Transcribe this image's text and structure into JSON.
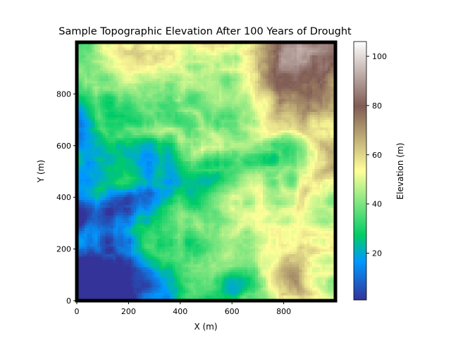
{
  "chart_data": {
    "type": "heatmap",
    "title": "Sample Topographic Elevation After 100 Years of Drought",
    "xlabel": "X (m)",
    "ylabel": "Y (m)",
    "xlim": [
      0,
      1000
    ],
    "ylim": [
      0,
      1000
    ],
    "x_ticks": [
      0,
      200,
      400,
      600,
      800
    ],
    "y_ticks": [
      0,
      200,
      400,
      600,
      800
    ],
    "grid": false,
    "colormap": "terrain",
    "colorbar": {
      "label": "Elevation (m)",
      "range": [
        1,
        106
      ],
      "ticks": [
        20,
        40,
        60,
        80,
        100
      ]
    },
    "grid_cells": 100,
    "elevation_summary": [
      {
        "region": "bottom-left outlet",
        "approx_elevation": 2
      },
      {
        "region": "main valley center",
        "approx_elevation": 20
      },
      {
        "region": "left-middle plateau",
        "approx_elevation": 45
      },
      {
        "region": "top-right highlands",
        "approx_elevation": 90
      },
      {
        "region": "top-right peak",
        "approx_elevation": 106
      },
      {
        "region": "bottom-right ridge",
        "approx_elevation": 80
      }
    ],
    "colors": {
      "border": "#000000"
    }
  }
}
